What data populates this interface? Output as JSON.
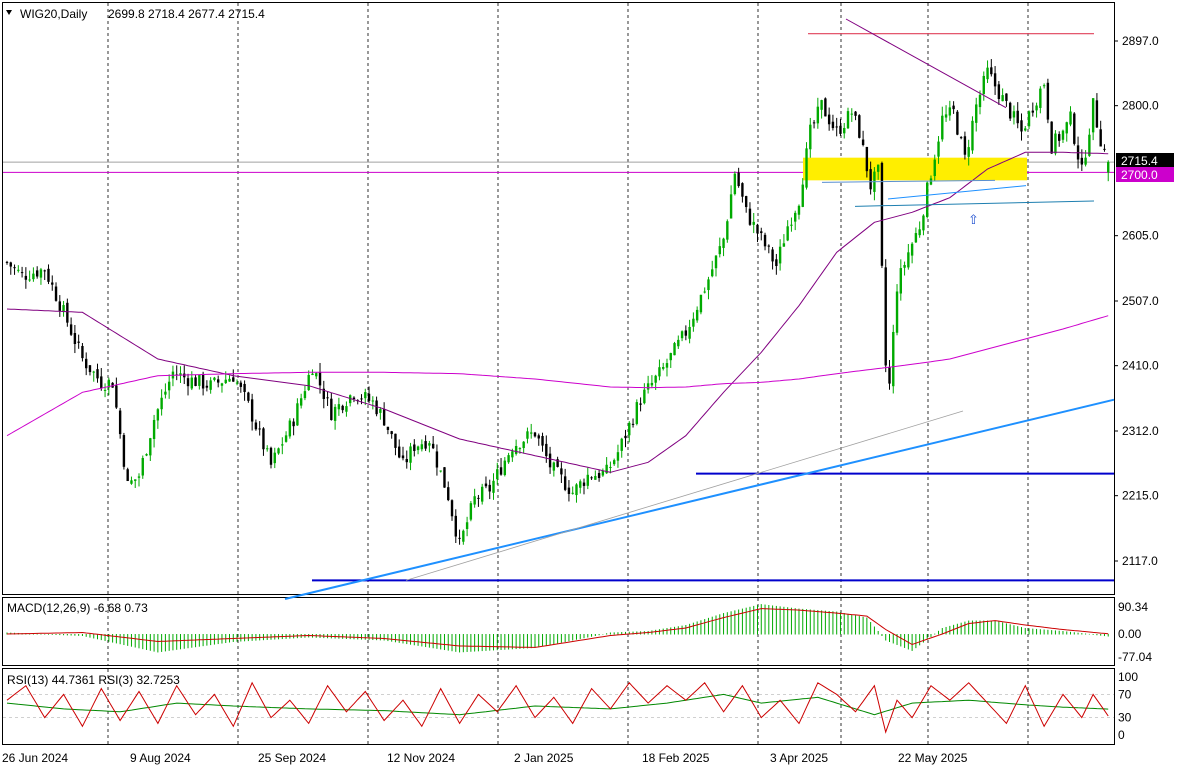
{
  "header": {
    "symbol": "WIG20,Daily",
    "ohlc": "2699.8 2718.4 2677.4 2715.4"
  },
  "colors": {
    "bull": "#00aa00",
    "bear": "#000000",
    "ma_short": "#800080",
    "ma_long": "#cc00cc",
    "trend": "#1e90ff",
    "support": "#0000cc",
    "resistance": "#e0405a",
    "zone": "#ffee00",
    "current_price_line": "#a0a0a0",
    "level_2700": "#cc00cc",
    "macd_hist": "#00aa00",
    "macd_signal": "#cc0000",
    "rsi13": "#008800",
    "rsi3": "#cc0000"
  },
  "chart_data": [
    {
      "type": "candlestick",
      "title": "WIG20,Daily",
      "ylim": [
        2060,
        2955
      ],
      "y_ticks": [
        2117.0,
        2215.0,
        2312.0,
        2410.0,
        2507.0,
        2605.0,
        2800.0,
        2897.0
      ],
      "x_ticks": [
        "26 Jun 2024",
        "9 Aug 2024",
        "25 Sep 2024",
        "12 Nov 2024",
        "2 Jan 2025",
        "18 Feb 2025",
        "3 Apr 2025",
        "22 May 2025"
      ],
      "anchors": [
        [
          0,
          2565
        ],
        [
          4,
          2545
        ],
        [
          10,
          2555
        ],
        [
          15,
          2490
        ],
        [
          20,
          2420
        ],
        [
          25,
          2385
        ],
        [
          28,
          2385
        ],
        [
          32,
          2230
        ],
        [
          35,
          2245
        ],
        [
          39,
          2330
        ],
        [
          44,
          2400
        ],
        [
          48,
          2390
        ],
        [
          54,
          2380
        ],
        [
          60,
          2395
        ],
        [
          64,
          2350
        ],
        [
          70,
          2260
        ],
        [
          76,
          2330
        ],
        [
          81,
          2410
        ],
        [
          86,
          2340
        ],
        [
          92,
          2370
        ],
        [
          97,
          2355
        ],
        [
          100,
          2330
        ],
        [
          105,
          2260
        ],
        [
          108,
          2290
        ],
        [
          112,
          2300
        ],
        [
          117,
          2215
        ],
        [
          120,
          2140
        ],
        [
          124,
          2210
        ],
        [
          128,
          2225
        ],
        [
          134,
          2290
        ],
        [
          140,
          2310
        ],
        [
          144,
          2260
        ],
        [
          150,
          2220
        ],
        [
          154,
          2245
        ],
        [
          159,
          2250
        ],
        [
          162,
          2280
        ],
        [
          168,
          2360
        ],
        [
          174,
          2405
        ],
        [
          180,
          2460
        ],
        [
          186,
          2540
        ],
        [
          190,
          2600
        ],
        [
          193,
          2700
        ],
        [
          196,
          2640
        ],
        [
          200,
          2600
        ],
        [
          204,
          2560
        ],
        [
          207,
          2620
        ],
        [
          210,
          2660
        ],
        [
          213,
          2760
        ],
        [
          216,
          2800
        ],
        [
          220,
          2760
        ],
        [
          224,
          2790
        ],
        [
          226,
          2760
        ],
        [
          229,
          2680
        ],
        [
          231,
          2700
        ],
        [
          232,
          2550
        ],
        [
          233,
          2410
        ],
        [
          234,
          2380
        ],
        [
          236,
          2530
        ],
        [
          239,
          2580
        ],
        [
          242,
          2620
        ],
        [
          245,
          2700
        ],
        [
          248,
          2780
        ],
        [
          251,
          2790
        ],
        [
          254,
          2720
        ],
        [
          257,
          2800
        ],
        [
          260,
          2850
        ],
        [
          263,
          2820
        ],
        [
          266,
          2790
        ],
        [
          269,
          2760
        ],
        [
          272,
          2800
        ],
        [
          275,
          2835
        ],
        [
          277,
          2740
        ],
        [
          280,
          2760
        ],
        [
          282,
          2780
        ],
        [
          285,
          2700
        ],
        [
          288,
          2800
        ],
        [
          290,
          2750
        ],
        [
          292,
          2715.4
        ]
      ],
      "ma_short": [
        [
          0,
          2495
        ],
        [
          20,
          2490
        ],
        [
          40,
          2420
        ],
        [
          60,
          2395
        ],
        [
          80,
          2380
        ],
        [
          100,
          2345
        ],
        [
          120,
          2300
        ],
        [
          140,
          2275
        ],
        [
          160,
          2250
        ],
        [
          170,
          2265
        ],
        [
          180,
          2305
        ],
        [
          190,
          2370
        ],
        [
          200,
          2430
        ],
        [
          210,
          2500
        ],
        [
          220,
          2580
        ],
        [
          230,
          2625
        ],
        [
          240,
          2640
        ],
        [
          250,
          2662
        ],
        [
          260,
          2705
        ],
        [
          270,
          2730
        ],
        [
          280,
          2730
        ],
        [
          292,
          2728
        ]
      ],
      "ma_long": [
        [
          0,
          2305
        ],
        [
          20,
          2370
        ],
        [
          40,
          2395
        ],
        [
          60,
          2398
        ],
        [
          80,
          2400
        ],
        [
          100,
          2400
        ],
        [
          120,
          2398
        ],
        [
          140,
          2390
        ],
        [
          160,
          2378
        ],
        [
          170,
          2377
        ],
        [
          180,
          2378
        ],
        [
          190,
          2383
        ],
        [
          200,
          2385
        ],
        [
          210,
          2390
        ],
        [
          220,
          2398
        ],
        [
          230,
          2405
        ],
        [
          240,
          2412
        ],
        [
          250,
          2420
        ],
        [
          260,
          2435
        ],
        [
          270,
          2450
        ],
        [
          280,
          2465
        ],
        [
          292,
          2485
        ]
      ]
    },
    {
      "type": "bar",
      "title": "MACD(12,26,9)",
      "main_value": "-6.68",
      "signal_value": "0.73",
      "ylim": [
        -95,
        115
      ],
      "y_ticks_printed": [
        "90.34",
        "0.00",
        "-77.04"
      ],
      "hist_anchors": [
        [
          0,
          5
        ],
        [
          20,
          -5
        ],
        [
          40,
          -60
        ],
        [
          60,
          -25
        ],
        [
          80,
          -10
        ],
        [
          100,
          -20
        ],
        [
          120,
          -60
        ],
        [
          140,
          -45
        ],
        [
          160,
          5
        ],
        [
          170,
          10
        ],
        [
          180,
          30
        ],
        [
          190,
          70
        ],
        [
          200,
          100
        ],
        [
          210,
          85
        ],
        [
          220,
          75
        ],
        [
          228,
          55
        ],
        [
          233,
          -20
        ],
        [
          240,
          -55
        ],
        [
          248,
          20
        ],
        [
          255,
          45
        ],
        [
          262,
          45
        ],
        [
          270,
          20
        ],
        [
          280,
          10
        ],
        [
          292,
          -6.68
        ]
      ],
      "signal_anchors": [
        [
          0,
          0
        ],
        [
          20,
          5
        ],
        [
          40,
          -25
        ],
        [
          60,
          -15
        ],
        [
          80,
          -5
        ],
        [
          100,
          -15
        ],
        [
          120,
          -40
        ],
        [
          140,
          -45
        ],
        [
          160,
          -5
        ],
        [
          170,
          5
        ],
        [
          180,
          20
        ],
        [
          190,
          55
        ],
        [
          200,
          85
        ],
        [
          210,
          80
        ],
        [
          220,
          70
        ],
        [
          228,
          60
        ],
        [
          233,
          15
        ],
        [
          240,
          -35
        ],
        [
          248,
          0
        ],
        [
          255,
          35
        ],
        [
          262,
          45
        ],
        [
          270,
          30
        ],
        [
          280,
          15
        ],
        [
          292,
          0.73
        ]
      ]
    },
    {
      "type": "line",
      "title": "RSI(13)",
      "rsi13_value": "44.7361",
      "rsi3_label": "RSI(3)",
      "rsi3_value": "32.7253",
      "ylim": [
        0,
        100
      ],
      "y_ticks_printed": [
        "100",
        "70",
        "30",
        "0"
      ],
      "rsi13_anchors": [
        [
          0,
          55
        ],
        [
          15,
          45
        ],
        [
          30,
          40
        ],
        [
          45,
          55
        ],
        [
          60,
          50
        ],
        [
          80,
          45
        ],
        [
          100,
          42
        ],
        [
          120,
          35
        ],
        [
          140,
          50
        ],
        [
          160,
          45
        ],
        [
          175,
          55
        ],
        [
          190,
          70
        ],
        [
          200,
          55
        ],
        [
          215,
          65
        ],
        [
          230,
          35
        ],
        [
          240,
          55
        ],
        [
          255,
          60
        ],
        [
          270,
          52
        ],
        [
          280,
          48
        ],
        [
          292,
          44.7361
        ]
      ],
      "rsi3_anchors": [
        [
          0,
          60
        ],
        [
          5,
          85
        ],
        [
          10,
          30
        ],
        [
          15,
          70
        ],
        [
          20,
          15
        ],
        [
          25,
          80
        ],
        [
          30,
          25
        ],
        [
          35,
          75
        ],
        [
          40,
          20
        ],
        [
          45,
          85
        ],
        [
          50,
          35
        ],
        [
          55,
          70
        ],
        [
          60,
          15
        ],
        [
          65,
          90
        ],
        [
          70,
          30
        ],
        [
          75,
          60
        ],
        [
          80,
          20
        ],
        [
          85,
          85
        ],
        [
          90,
          40
        ],
        [
          95,
          75
        ],
        [
          100,
          25
        ],
        [
          105,
          60
        ],
        [
          110,
          15
        ],
        [
          115,
          80
        ],
        [
          120,
          20
        ],
        [
          125,
          70
        ],
        [
          130,
          40
        ],
        [
          135,
          85
        ],
        [
          140,
          30
        ],
        [
          145,
          65
        ],
        [
          150,
          20
        ],
        [
          155,
          80
        ],
        [
          160,
          45
        ],
        [
          165,
          90
        ],
        [
          170,
          55
        ],
        [
          175,
          85
        ],
        [
          180,
          60
        ],
        [
          185,
          90
        ],
        [
          190,
          40
        ],
        [
          195,
          85
        ],
        [
          200,
          30
        ],
        [
          205,
          60
        ],
        [
          210,
          20
        ],
        [
          215,
          90
        ],
        [
          220,
          70
        ],
        [
          225,
          40
        ],
        [
          230,
          85
        ],
        [
          233,
          5
        ],
        [
          236,
          60
        ],
        [
          240,
          30
        ],
        [
          245,
          85
        ],
        [
          250,
          60
        ],
        [
          255,
          90
        ],
        [
          260,
          55
        ],
        [
          265,
          20
        ],
        [
          270,
          85
        ],
        [
          275,
          15
        ],
        [
          280,
          70
        ],
        [
          285,
          30
        ],
        [
          288,
          70
        ],
        [
          292,
          32.7253
        ]
      ]
    }
  ],
  "levels": {
    "current_price": "2715.4",
    "horizontal_line": "2700.0"
  },
  "annotations": {
    "arrow_symbol": "⇧"
  }
}
